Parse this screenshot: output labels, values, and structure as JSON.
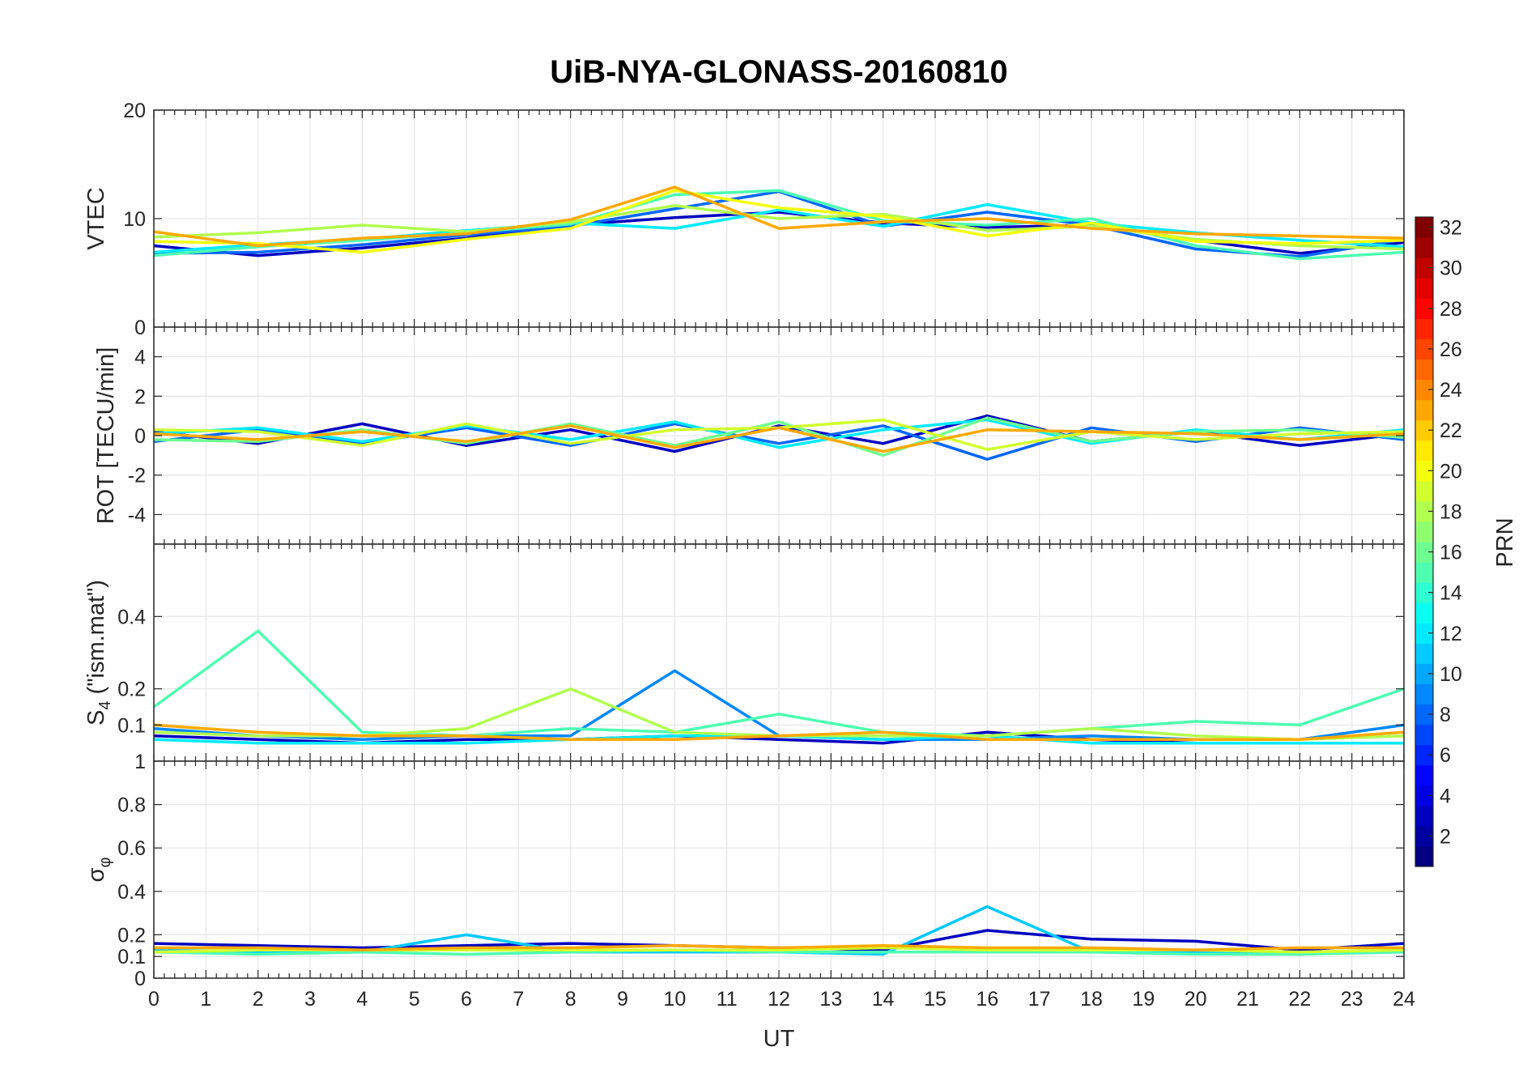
{
  "chart_data": {
    "type": "line",
    "title": "UiB-NYA-GLONASS-20160810",
    "xlabel": "UT",
    "xlim": [
      0,
      24
    ],
    "x_ticks": [
      "0",
      "1",
      "2",
      "3",
      "4",
      "5",
      "6",
      "7",
      "8",
      "9",
      "10",
      "11",
      "12",
      "13",
      "14",
      "15",
      "16",
      "17",
      "18",
      "19",
      "20",
      "21",
      "22",
      "23",
      "24"
    ],
    "grid": true,
    "colormap": "jet",
    "colorbar": {
      "label": "PRN",
      "range": [
        1,
        32
      ],
      "ticks": [
        "2",
        "4",
        "6",
        "8",
        "10",
        "12",
        "14",
        "16",
        "18",
        "20",
        "22",
        "24",
        "26",
        "28",
        "30",
        "32"
      ],
      "placement": "right"
    },
    "panels": [
      {
        "id": "vtec",
        "ylabel": "VTEC",
        "ylim": [
          0,
          20
        ],
        "y_ticks": [
          "0",
          "10",
          "20"
        ],
        "series": [
          {
            "prn": 3,
            "x": [
              0,
              2,
              4,
              6,
              8,
              10,
              12,
              14,
              16,
              18,
              20,
              22,
              24
            ],
            "values": [
              7.5,
              6.6,
              7.3,
              8.2,
              9.4,
              10.1,
              10.6,
              9.6,
              9.2,
              9.4,
              8.0,
              6.8,
              7.8
            ]
          },
          {
            "prn": 8,
            "x": [
              0,
              2,
              4,
              6,
              8,
              10,
              12,
              14,
              16,
              18,
              20,
              22,
              24
            ],
            "values": [
              6.8,
              6.9,
              7.6,
              8.5,
              9.3,
              10.9,
              12.5,
              9.3,
              10.6,
              9.4,
              7.2,
              6.5,
              8.1
            ]
          },
          {
            "prn": 12,
            "x": [
              0,
              2,
              4,
              6,
              8,
              10,
              12,
              14,
              16,
              18,
              20,
              22,
              24
            ],
            "values": [
              6.9,
              7.6,
              8.1,
              8.9,
              9.6,
              9.1,
              10.8,
              9.3,
              11.3,
              9.6,
              8.7,
              8.0,
              7.4
            ]
          },
          {
            "prn": 15,
            "x": [
              0,
              2,
              4,
              6,
              8,
              10,
              12,
              14,
              16,
              18,
              20,
              22,
              24
            ],
            "values": [
              6.6,
              7.4,
              8.0,
              8.7,
              9.5,
              12.2,
              12.6,
              9.8,
              9.4,
              10.0,
              7.5,
              6.3,
              6.9
            ]
          },
          {
            "prn": 18,
            "x": [
              0,
              2,
              4,
              6,
              8,
              10,
              12,
              14,
              16,
              18,
              20,
              22,
              24
            ],
            "values": [
              8.3,
              8.7,
              9.4,
              8.8,
              9.7,
              11.2,
              10.0,
              10.4,
              8.9,
              9.3,
              8.1,
              7.5,
              7.2
            ]
          },
          {
            "prn": 20,
            "x": [
              0,
              2,
              4,
              6,
              8,
              10,
              12,
              14,
              16,
              18,
              20,
              22,
              24
            ],
            "values": [
              7.9,
              7.7,
              6.9,
              8.1,
              9.1,
              12.6,
              11.0,
              10.2,
              8.4,
              9.6,
              7.9,
              7.7,
              8.0
            ]
          },
          {
            "prn": 23,
            "x": [
              0,
              2,
              4,
              6,
              8,
              10,
              12,
              14,
              16,
              18,
              20,
              22,
              24
            ],
            "values": [
              8.8,
              7.5,
              8.2,
              8.6,
              9.9,
              12.9,
              9.1,
              9.7,
              10.0,
              9.1,
              8.6,
              8.4,
              8.2
            ]
          }
        ]
      },
      {
        "id": "rot",
        "ylabel": "ROT [TECU/min]",
        "ylim": [
          -5.5,
          5.5
        ],
        "y_ticks": [
          "-4",
          "-2",
          "0",
          "2",
          "4"
        ],
        "series": [
          {
            "prn": 3,
            "x": [
              0,
              2,
              4,
              6,
              8,
              10,
              12,
              14,
              16,
              18,
              20,
              22,
              24
            ],
            "values": [
              0.2,
              -0.4,
              0.6,
              -0.5,
              0.3,
              -0.8,
              0.5,
              -0.4,
              1.0,
              -0.3,
              0.2,
              -0.5,
              0.1
            ]
          },
          {
            "prn": 8,
            "x": [
              0,
              2,
              4,
              6,
              8,
              10,
              12,
              14,
              16,
              18,
              20,
              22,
              24
            ],
            "values": [
              -0.3,
              0.3,
              -0.4,
              0.4,
              -0.5,
              0.6,
              -0.4,
              0.5,
              -1.2,
              0.4,
              -0.3,
              0.4,
              -0.2
            ]
          },
          {
            "prn": 12,
            "x": [
              0,
              2,
              4,
              6,
              8,
              10,
              12,
              14,
              16,
              18,
              20,
              22,
              24
            ],
            "values": [
              0.1,
              0.4,
              -0.3,
              0.5,
              -0.2,
              0.7,
              -0.6,
              0.3,
              0.8,
              -0.4,
              0.3,
              -0.2,
              0.3
            ]
          },
          {
            "prn": 16,
            "x": [
              0,
              2,
              4,
              6,
              8,
              10,
              12,
              14,
              16,
              18,
              20,
              22,
              24
            ],
            "values": [
              -0.2,
              -0.3,
              0.3,
              -0.4,
              0.6,
              -0.5,
              0.7,
              -1.0,
              0.9,
              -0.3,
              0.2,
              0.3,
              -0.1
            ]
          },
          {
            "prn": 19,
            "x": [
              0,
              2,
              4,
              6,
              8,
              10,
              12,
              14,
              16,
              18,
              20,
              22,
              24
            ],
            "values": [
              0.3,
              0.2,
              -0.5,
              0.6,
              -0.4,
              0.3,
              0.4,
              0.8,
              -0.7,
              0.2,
              -0.2,
              0.1,
              0.2
            ]
          },
          {
            "prn": 23,
            "x": [
              0,
              2,
              4,
              6,
              8,
              10,
              12,
              14,
              16,
              18,
              20,
              22,
              24
            ],
            "values": [
              0.1,
              -0.2,
              0.2,
              -0.3,
              0.5,
              -0.6,
              0.4,
              -0.8,
              0.3,
              0.2,
              0.1,
              -0.2,
              0.1
            ]
          }
        ]
      },
      {
        "id": "s4",
        "ylabel": "S4 (\"ism.mat\")",
        "ylabel_main": "S",
        "ylabel_sub": "4",
        "ylabel_tail": " (\"ism.mat\")",
        "ylim": [
          0,
          0.6
        ],
        "y_ticks": [
          "0.1",
          "0.2",
          "0.4"
        ],
        "series": [
          {
            "prn": 3,
            "x": [
              0,
              2,
              4,
              6,
              8,
              10,
              12,
              14,
              16,
              18,
              20,
              22,
              24
            ],
            "values": [
              0.07,
              0.06,
              0.05,
              0.06,
              0.06,
              0.07,
              0.06,
              0.05,
              0.08,
              0.06,
              0.05,
              0.05,
              0.05
            ]
          },
          {
            "prn": 9,
            "x": [
              0,
              2,
              4,
              6,
              8,
              10,
              12,
              14,
              16,
              18,
              20,
              22,
              24
            ],
            "values": [
              0.09,
              0.07,
              0.06,
              0.07,
              0.07,
              0.25,
              0.07,
              0.06,
              0.06,
              0.07,
              0.06,
              0.06,
              0.1
            ]
          },
          {
            "prn": 12,
            "x": [
              0,
              2,
              4,
              6,
              8,
              10,
              12,
              14,
              16,
              18,
              20,
              22,
              24
            ],
            "values": [
              0.06,
              0.05,
              0.05,
              0.05,
              0.06,
              0.07,
              0.07,
              0.06,
              0.07,
              0.05,
              0.05,
              0.05,
              0.05
            ]
          },
          {
            "prn": 15,
            "x": [
              0,
              2,
              4,
              6,
              8,
              10,
              12,
              14,
              16,
              18,
              20,
              22,
              24
            ],
            "values": [
              0.15,
              0.36,
              0.08,
              0.07,
              0.09,
              0.08,
              0.13,
              0.08,
              0.07,
              0.09,
              0.11,
              0.1,
              0.2
            ]
          },
          {
            "prn": 18,
            "x": [
              0,
              2,
              4,
              6,
              8,
              10,
              12,
              14,
              16,
              18,
              20,
              22,
              24
            ],
            "values": [
              0.08,
              0.07,
              0.07,
              0.09,
              0.2,
              0.08,
              0.07,
              0.07,
              0.07,
              0.09,
              0.07,
              0.06,
              0.07
            ]
          },
          {
            "prn": 23,
            "x": [
              0,
              2,
              4,
              6,
              8,
              10,
              12,
              14,
              16,
              18,
              20,
              22,
              24
            ],
            "values": [
              0.1,
              0.08,
              0.07,
              0.07,
              0.06,
              0.06,
              0.07,
              0.08,
              0.06,
              0.06,
              0.06,
              0.06,
              0.08
            ]
          }
        ]
      },
      {
        "id": "sigma_phi",
        "ylabel": "σ_φ",
        "ylabel_main": "σ",
        "ylabel_sub": "φ",
        "ylim": [
          0,
          1
        ],
        "y_ticks": [
          "0",
          "0.1",
          "0.2",
          "0.4",
          "0.6",
          "0.8",
          "1"
        ],
        "series": [
          {
            "prn": 3,
            "x": [
              0,
              2,
              4,
              6,
              8,
              10,
              12,
              14,
              16,
              18,
              20,
              22,
              24
            ],
            "values": [
              0.16,
              0.15,
              0.14,
              0.15,
              0.16,
              0.15,
              0.14,
              0.13,
              0.22,
              0.18,
              0.17,
              0.13,
              0.16
            ]
          },
          {
            "prn": 11,
            "x": [
              0,
              2,
              4,
              6,
              8,
              10,
              12,
              14,
              16,
              18,
              20,
              22,
              24
            ],
            "values": [
              0.13,
              0.12,
              0.12,
              0.2,
              0.12,
              0.12,
              0.12,
              0.11,
              0.33,
              0.12,
              0.12,
              0.11,
              0.13
            ]
          },
          {
            "prn": 15,
            "x": [
              0,
              2,
              4,
              6,
              8,
              10,
              12,
              14,
              16,
              18,
              20,
              22,
              24
            ],
            "values": [
              0.12,
              0.11,
              0.12,
              0.11,
              0.12,
              0.13,
              0.12,
              0.12,
              0.12,
              0.12,
              0.11,
              0.11,
              0.12
            ]
          },
          {
            "prn": 19,
            "x": [
              0,
              2,
              4,
              6,
              8,
              10,
              12,
              14,
              16,
              18,
              20,
              22,
              24
            ],
            "values": [
              0.12,
              0.13,
              0.13,
              0.13,
              0.13,
              0.13,
              0.13,
              0.14,
              0.13,
              0.13,
              0.13,
              0.12,
              0.13
            ]
          },
          {
            "prn": 23,
            "x": [
              0,
              2,
              4,
              6,
              8,
              10,
              12,
              14,
              16,
              18,
              20,
              22,
              24
            ],
            "values": [
              0.14,
              0.14,
              0.13,
              0.14,
              0.14,
              0.15,
              0.14,
              0.15,
              0.14,
              0.14,
              0.13,
              0.14,
              0.14
            ]
          }
        ]
      }
    ]
  }
}
